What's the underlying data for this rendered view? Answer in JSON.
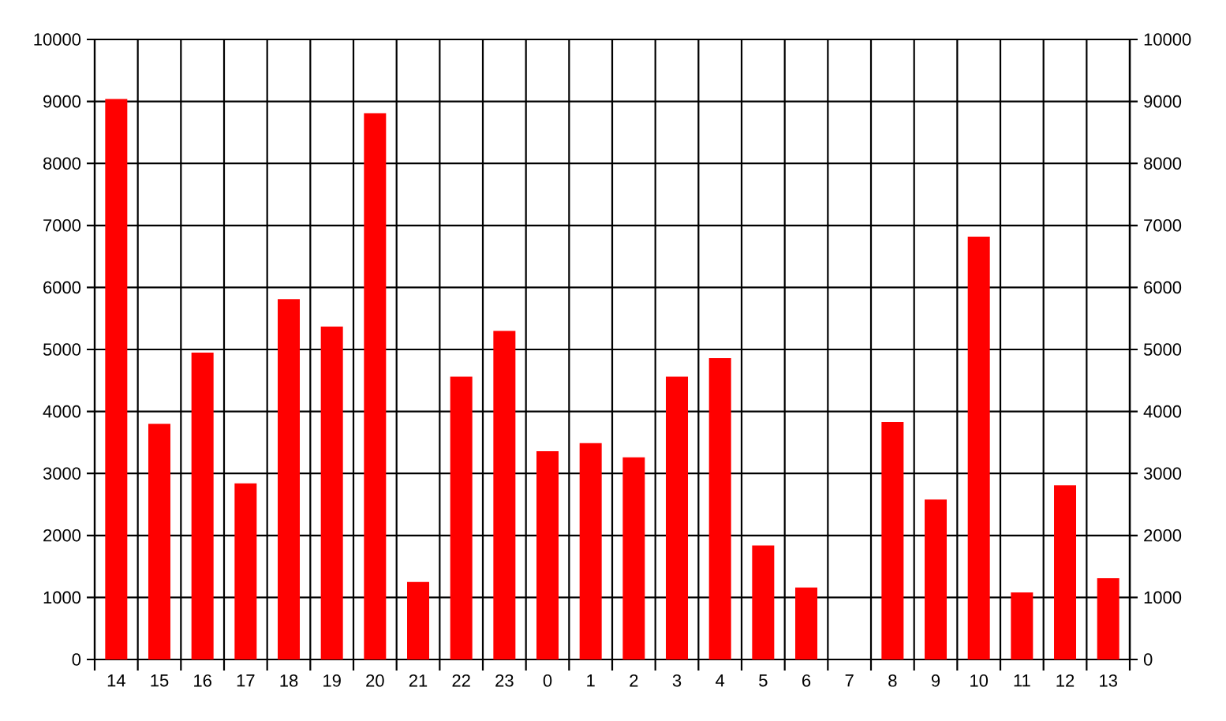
{
  "chart_data": {
    "type": "bar",
    "categories": [
      "14",
      "15",
      "16",
      "17",
      "18",
      "19",
      "20",
      "21",
      "22",
      "23",
      "0",
      "1",
      "2",
      "3",
      "4",
      "5",
      "6",
      "7",
      "8",
      "9",
      "10",
      "11",
      "12",
      "13"
    ],
    "values": [
      9040,
      3800,
      4950,
      2840,
      5810,
      5370,
      8810,
      1250,
      4560,
      5300,
      3360,
      3490,
      3260,
      4560,
      4860,
      1840,
      1160,
      0,
      3830,
      2580,
      6820,
      1080,
      2810,
      1310
    ],
    "color": "#ff0000",
    "ylim": [
      0,
      10000
    ],
    "yticks": [
      0,
      1000,
      2000,
      3000,
      4000,
      5000,
      6000,
      7000,
      8000,
      9000,
      10000
    ],
    "y2lim": [
      0,
      10000
    ],
    "y2ticks": [
      0,
      1000,
      2000,
      3000,
      4000,
      5000,
      6000,
      7000,
      8000,
      9000,
      10000
    ],
    "grid": true
  }
}
